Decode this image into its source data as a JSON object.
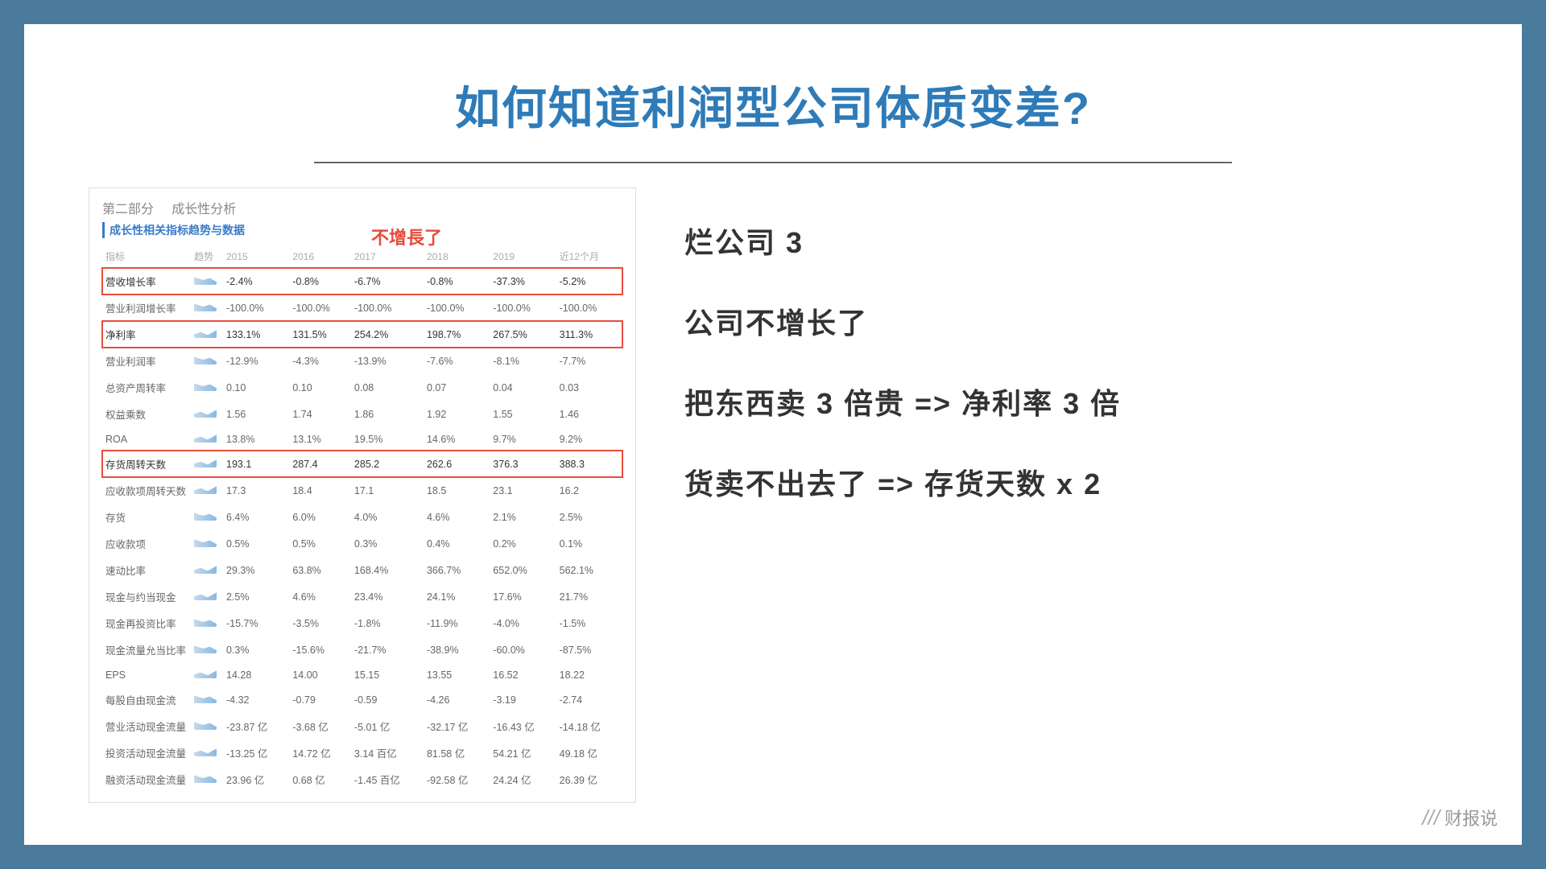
{
  "title": "如何知道利润型公司体质变差?",
  "annotation": "不增長了",
  "panel": {
    "header_prefix": "第二部分",
    "header_suffix": "成长性分析",
    "subheader": "成长性相关指标趋势与数据"
  },
  "table": {
    "columns": [
      "指标",
      "趋势",
      "2015",
      "2016",
      "2017",
      "2018",
      "2019",
      "近12个月"
    ],
    "rows": [
      {
        "label": "营收增长率",
        "highlight": true,
        "trend": "down",
        "values": [
          "-2.4%",
          "-0.8%",
          "-6.7%",
          "-0.8%",
          "-37.3%",
          "-5.2%"
        ]
      },
      {
        "label": "营业利润增长率",
        "highlight": false,
        "trend": "down",
        "values": [
          "-100.0%",
          "-100.0%",
          "-100.0%",
          "-100.0%",
          "-100.0%",
          "-100.0%"
        ]
      },
      {
        "label": "净利率",
        "highlight": true,
        "trend": "up",
        "values": [
          "133.1%",
          "131.5%",
          "254.2%",
          "198.7%",
          "267.5%",
          "311.3%"
        ]
      },
      {
        "label": "营业利润率",
        "highlight": false,
        "trend": "down",
        "values": [
          "-12.9%",
          "-4.3%",
          "-13.9%",
          "-7.6%",
          "-8.1%",
          "-7.7%"
        ]
      },
      {
        "label": "总资产周转率",
        "highlight": false,
        "trend": "down",
        "values": [
          "0.10",
          "0.10",
          "0.08",
          "0.07",
          "0.04",
          "0.03"
        ]
      },
      {
        "label": "权益乘数",
        "highlight": false,
        "trend": "up",
        "values": [
          "1.56",
          "1.74",
          "1.86",
          "1.92",
          "1.55",
          "1.46"
        ]
      },
      {
        "label": "ROA",
        "highlight": false,
        "trend": "up",
        "values": [
          "13.8%",
          "13.1%",
          "19.5%",
          "14.6%",
          "9.7%",
          "9.2%"
        ]
      },
      {
        "label": "存货周转天数",
        "highlight": true,
        "trend": "up",
        "values": [
          "193.1",
          "287.4",
          "285.2",
          "262.6",
          "376.3",
          "388.3"
        ]
      },
      {
        "label": "应收款项周转天数",
        "highlight": false,
        "trend": "up",
        "values": [
          "17.3",
          "18.4",
          "17.1",
          "18.5",
          "23.1",
          "16.2"
        ]
      },
      {
        "label": "存货",
        "highlight": false,
        "trend": "down",
        "values": [
          "6.4%",
          "6.0%",
          "4.0%",
          "4.6%",
          "2.1%",
          "2.5%"
        ]
      },
      {
        "label": "应收款项",
        "highlight": false,
        "trend": "down",
        "values": [
          "0.5%",
          "0.5%",
          "0.3%",
          "0.4%",
          "0.2%",
          "0.1%"
        ]
      },
      {
        "label": "速动比率",
        "highlight": false,
        "trend": "up",
        "values": [
          "29.3%",
          "63.8%",
          "168.4%",
          "366.7%",
          "652.0%",
          "562.1%"
        ]
      },
      {
        "label": "现金与约当现金",
        "highlight": false,
        "trend": "up",
        "values": [
          "2.5%",
          "4.6%",
          "23.4%",
          "24.1%",
          "17.6%",
          "21.7%"
        ]
      },
      {
        "label": "现金再投资比率",
        "highlight": false,
        "trend": "down",
        "values": [
          "-15.7%",
          "-3.5%",
          "-1.8%",
          "-11.9%",
          "-4.0%",
          "-1.5%"
        ]
      },
      {
        "label": "现金流量允当比率",
        "highlight": false,
        "trend": "down",
        "values": [
          "0.3%",
          "-15.6%",
          "-21.7%",
          "-38.9%",
          "-60.0%",
          "-87.5%"
        ]
      },
      {
        "label": "EPS",
        "highlight": false,
        "trend": "up",
        "values": [
          "14.28",
          "14.00",
          "15.15",
          "13.55",
          "16.52",
          "18.22"
        ]
      },
      {
        "label": "每股自由现金流",
        "highlight": false,
        "trend": "down",
        "values": [
          "-4.32",
          "-0.79",
          "-0.59",
          "-4.26",
          "-3.19",
          "-2.74"
        ]
      },
      {
        "label": "营业活动现金流量",
        "highlight": false,
        "trend": "down",
        "values": [
          "-23.87 亿",
          "-3.68 亿",
          "-5.01 亿",
          "-32.17 亿",
          "-16.43 亿",
          "-14.18 亿"
        ]
      },
      {
        "label": "投资活动现金流量",
        "highlight": false,
        "trend": "up",
        "values": [
          "-13.25 亿",
          "14.72 亿",
          "3.14 百亿",
          "81.58 亿",
          "54.21 亿",
          "49.18 亿"
        ]
      },
      {
        "label": "融资活动现金流量",
        "highlight": false,
        "trend": "down",
        "values": [
          "23.96 亿",
          "0.68 亿",
          "-1.45 百亿",
          "-92.58 亿",
          "24.24 亿",
          "26.39 亿"
        ]
      }
    ]
  },
  "bullets": [
    "烂公司 3",
    "公司不增长了",
    "把东西卖 3 倍贵 => 净利率 3 倍",
    "货卖不出去了 => 存货天数 x 2"
  ],
  "logo": "财报说",
  "styling": {
    "page_bg": "#4a7a9c",
    "slide_bg": "#ffffff",
    "title_color": "#2e7bb8",
    "highlight_border": "#e74c3c",
    "annotation_color": "#e74c3c",
    "table_text": "#666666",
    "bullet_color": "#333333",
    "trend_fill": "#8ab8e0"
  }
}
